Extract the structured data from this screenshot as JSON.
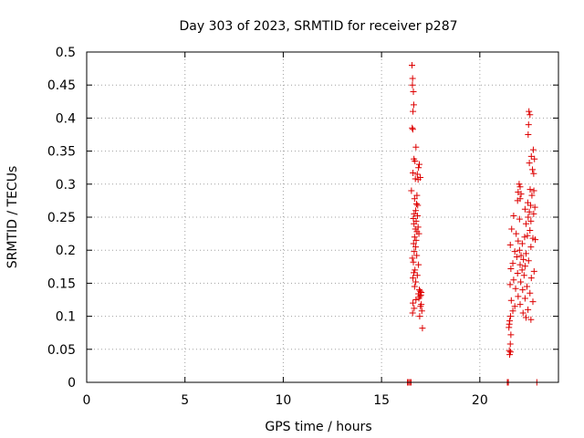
{
  "chart_data": {
    "type": "scatter",
    "title": "Day 303 of 2023, SRMTID for receiver p287",
    "xlabel": "GPS time / hours",
    "ylabel": "SRMTID / TECUs",
    "xlim": [
      0,
      24
    ],
    "ylim": [
      0,
      0.5
    ],
    "xticks": [
      0,
      5,
      10,
      15,
      20
    ],
    "xtick_labels": [
      "0",
      "5",
      "10",
      "15",
      "20"
    ],
    "yticks": [
      0,
      0.05,
      0.1,
      0.15,
      0.2,
      0.25,
      0.3,
      0.35,
      0.4,
      0.45,
      0.5
    ],
    "ytick_labels": [
      "0",
      "0.05",
      "0.1",
      "0.15",
      "0.2",
      "0.25",
      "0.3",
      "0.35",
      "0.4",
      "0.45",
      "0.5"
    ],
    "grid": true,
    "marker": "+",
    "series": [
      {
        "name": "SRMTID",
        "color": "#dd0000",
        "points": [
          [
            16.32,
            0.0
          ],
          [
            16.38,
            0.0
          ],
          [
            16.44,
            0.0
          ],
          [
            16.5,
            0.0
          ],
          [
            21.4,
            0.0
          ],
          [
            21.45,
            0.0
          ],
          [
            22.9,
            0.0
          ],
          [
            16.55,
            0.48
          ],
          [
            16.58,
            0.46
          ],
          [
            16.57,
            0.45
          ],
          [
            16.62,
            0.44
          ],
          [
            16.64,
            0.42
          ],
          [
            16.6,
            0.41
          ],
          [
            16.56,
            0.385
          ],
          [
            16.59,
            0.383
          ],
          [
            16.75,
            0.356
          ],
          [
            16.65,
            0.338
          ],
          [
            16.7,
            0.335
          ],
          [
            16.92,
            0.33
          ],
          [
            16.88,
            0.325
          ],
          [
            16.6,
            0.317
          ],
          [
            16.82,
            0.315
          ],
          [
            16.97,
            0.31
          ],
          [
            16.72,
            0.308
          ],
          [
            16.86,
            0.307
          ],
          [
            16.52,
            0.29
          ],
          [
            16.8,
            0.283
          ],
          [
            16.68,
            0.278
          ],
          [
            16.78,
            0.27
          ],
          [
            16.84,
            0.268
          ],
          [
            16.74,
            0.26
          ],
          [
            16.66,
            0.255
          ],
          [
            16.83,
            0.252
          ],
          [
            16.62,
            0.248
          ],
          [
            16.76,
            0.244
          ],
          [
            16.65,
            0.24
          ],
          [
            16.86,
            0.235
          ],
          [
            16.72,
            0.232
          ],
          [
            16.8,
            0.228
          ],
          [
            16.9,
            0.225
          ],
          [
            16.68,
            0.22
          ],
          [
            16.76,
            0.215
          ],
          [
            16.63,
            0.21
          ],
          [
            16.74,
            0.205
          ],
          [
            16.66,
            0.198
          ],
          [
            16.79,
            0.192
          ],
          [
            16.57,
            0.188
          ],
          [
            16.62,
            0.182
          ],
          [
            16.88,
            0.178
          ],
          [
            16.7,
            0.17
          ],
          [
            16.64,
            0.166
          ],
          [
            16.82,
            0.162
          ],
          [
            16.6,
            0.158
          ],
          [
            16.74,
            0.152
          ],
          [
            16.68,
            0.145
          ],
          [
            16.92,
            0.14
          ],
          [
            16.97,
            0.138
          ],
          [
            17.02,
            0.136
          ],
          [
            16.88,
            0.134
          ],
          [
            17.0,
            0.132
          ],
          [
            16.95,
            0.13
          ],
          [
            16.9,
            0.127
          ],
          [
            16.75,
            0.125
          ],
          [
            16.6,
            0.12
          ],
          [
            17.02,
            0.118
          ],
          [
            16.98,
            0.115
          ],
          [
            16.66,
            0.112
          ],
          [
            17.05,
            0.108
          ],
          [
            16.58,
            0.105
          ],
          [
            16.94,
            0.1
          ],
          [
            17.08,
            0.082
          ],
          [
            22.5,
            0.41
          ],
          [
            22.55,
            0.405
          ],
          [
            22.48,
            0.39
          ],
          [
            22.46,
            0.375
          ],
          [
            22.72,
            0.352
          ],
          [
            22.62,
            0.342
          ],
          [
            22.78,
            0.338
          ],
          [
            22.52,
            0.332
          ],
          [
            22.68,
            0.322
          ],
          [
            22.74,
            0.316
          ],
          [
            22.0,
            0.3
          ],
          [
            22.05,
            0.296
          ],
          [
            22.56,
            0.292
          ],
          [
            22.75,
            0.29
          ],
          [
            21.95,
            0.288
          ],
          [
            22.1,
            0.285
          ],
          [
            22.65,
            0.283
          ],
          [
            22.05,
            0.278
          ],
          [
            21.92,
            0.275
          ],
          [
            22.44,
            0.272
          ],
          [
            22.58,
            0.268
          ],
          [
            22.8,
            0.265
          ],
          [
            22.3,
            0.262
          ],
          [
            22.52,
            0.258
          ],
          [
            22.74,
            0.255
          ],
          [
            21.72,
            0.252
          ],
          [
            22.46,
            0.25
          ],
          [
            22.02,
            0.247
          ],
          [
            22.6,
            0.244
          ],
          [
            22.35,
            0.24
          ],
          [
            21.62,
            0.232
          ],
          [
            22.55,
            0.23
          ],
          [
            21.85,
            0.225
          ],
          [
            22.42,
            0.222
          ],
          [
            22.28,
            0.22
          ],
          [
            22.7,
            0.218
          ],
          [
            22.82,
            0.216
          ],
          [
            21.95,
            0.214
          ],
          [
            22.16,
            0.21
          ],
          [
            21.55,
            0.208
          ],
          [
            22.6,
            0.205
          ],
          [
            22.02,
            0.2
          ],
          [
            21.78,
            0.198
          ],
          [
            22.35,
            0.195
          ],
          [
            22.1,
            0.192
          ],
          [
            21.88,
            0.19
          ],
          [
            22.22,
            0.186
          ],
          [
            22.48,
            0.184
          ],
          [
            21.68,
            0.18
          ],
          [
            22.05,
            0.178
          ],
          [
            22.3,
            0.176
          ],
          [
            21.58,
            0.172
          ],
          [
            22.15,
            0.17
          ],
          [
            22.76,
            0.168
          ],
          [
            21.92,
            0.165
          ],
          [
            22.25,
            0.162
          ],
          [
            22.62,
            0.158
          ],
          [
            21.72,
            0.155
          ],
          [
            22.08,
            0.152
          ],
          [
            21.54,
            0.148
          ],
          [
            22.4,
            0.145
          ],
          [
            21.82,
            0.142
          ],
          [
            22.18,
            0.14
          ],
          [
            22.55,
            0.135
          ],
          [
            21.95,
            0.13
          ],
          [
            22.3,
            0.127
          ],
          [
            21.6,
            0.124
          ],
          [
            22.7,
            0.122
          ],
          [
            22.05,
            0.118
          ],
          [
            21.78,
            0.115
          ],
          [
            22.45,
            0.11
          ],
          [
            21.68,
            0.108
          ],
          [
            22.2,
            0.105
          ],
          [
            21.56,
            0.1
          ],
          [
            22.35,
            0.098
          ],
          [
            21.52,
            0.093
          ],
          [
            22.6,
            0.095
          ],
          [
            21.5,
            0.088
          ],
          [
            21.48,
            0.083
          ],
          [
            21.58,
            0.072
          ],
          [
            21.55,
            0.058
          ],
          [
            21.5,
            0.048
          ],
          [
            21.56,
            0.046
          ],
          [
            21.52,
            0.042
          ]
        ]
      }
    ]
  }
}
